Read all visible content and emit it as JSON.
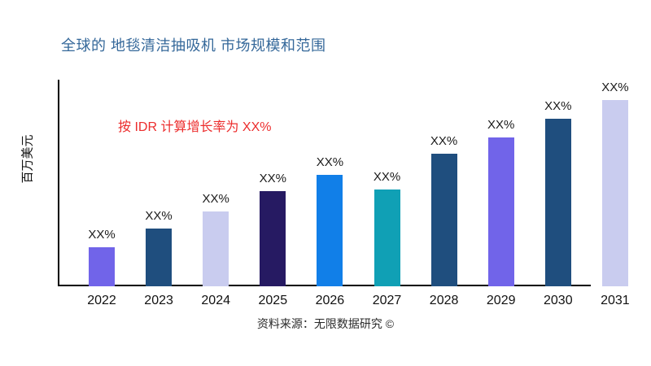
{
  "page": {
    "background": "#ffffff"
  },
  "chart_data": {
    "type": "bar",
    "title": "全球的 地毯清洁抽吸机 市场规模和范围",
    "title_color": "#35689A",
    "ylabel": "百万美元",
    "xlabel": "",
    "annotation": "按 IDR 计算增长率为 XX%",
    "annotation_color": "#EC2D2D",
    "source": "资料来源：无限数据研究 ©",
    "categories": [
      "2022",
      "2023",
      "2024",
      "2025",
      "2026",
      "2027",
      "2028",
      "2029",
      "2030",
      "2031"
    ],
    "bar_labels": [
      "XX%",
      "XX%",
      "XX%",
      "XX%",
      "XX%",
      "XX%",
      "XX%",
      "XX%",
      "XX%",
      "XX%"
    ],
    "values_relative_pct_of_max": [
      21,
      31,
      40,
      51,
      60,
      52,
      71,
      80,
      90,
      100
    ],
    "bar_colors": [
      "#7164E9",
      "#1F4E7E",
      "#C9CCEF",
      "#261A62",
      "#117FE8",
      "#10A0B5",
      "#1F4E7E",
      "#7164E9",
      "#1F4E7E",
      "#C9CCEF"
    ],
    "grid": false,
    "legend": false,
    "axis_color": "#000000",
    "tick_label_color": "#111111"
  }
}
